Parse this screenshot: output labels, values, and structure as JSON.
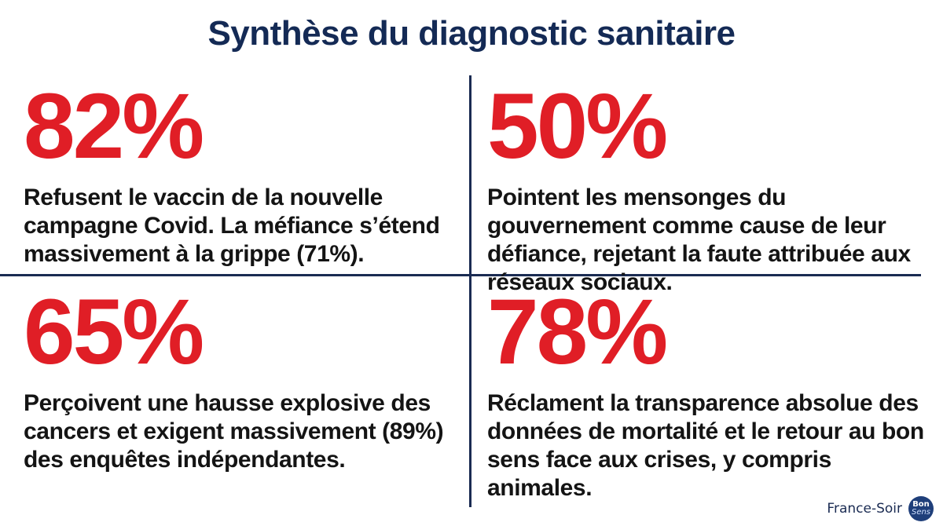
{
  "title": "Synthèse du diagnostic sanitaire",
  "stats": [
    {
      "value": "82%",
      "text": "Refusent le vaccin de la nouvelle campagne Covid. La méfiance s’étend massivement à la grippe (71%)."
    },
    {
      "value": "50%",
      "text": "Pointent les mensonges du gouvernement comme cause de leur défiance, rejetant la faute attribuée aux réseaux sociaux."
    },
    {
      "value": "65%",
      "text": "Perçoivent une hausse explosive des cancers et exigent massivement (89%) des enquêtes indépendantes."
    },
    {
      "value": "78%",
      "text": "Réclament la transparence absolue des données de mortalité et le retour au bon sens face aux crises, y compris animales."
    }
  ],
  "branding": {
    "source": "France-Soir",
    "logo_line1": "Bon",
    "logo_line2": "Sens"
  },
  "colors": {
    "title": "#142a55",
    "percent": "#e01e26",
    "text": "#141414",
    "divider": "#1a2b52"
  }
}
